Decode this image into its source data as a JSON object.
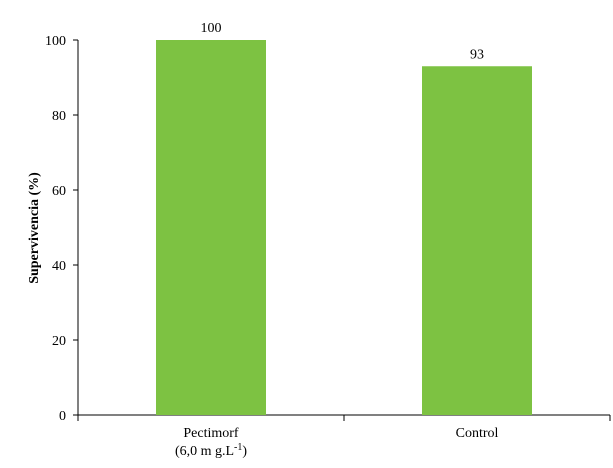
{
  "chart_data": {
    "type": "bar",
    "categories": [
      "Pectimorf",
      "Control"
    ],
    "category_sublabels": [
      "(6,0 m g.L",
      ""
    ],
    "category_sublabel_superscripts": [
      "-1",
      ""
    ],
    "category_sublabel_suffixes": [
      ")",
      ""
    ],
    "values": [
      100,
      93
    ],
    "data_labels": [
      "100",
      "93"
    ],
    "ylabel": "Supervivencia  (%)",
    "xlabel": "",
    "title": "",
    "ylim": [
      0,
      100
    ],
    "yticks": [
      0,
      20,
      40,
      60,
      80,
      100
    ],
    "ytick_labels": [
      "0",
      "20",
      "40",
      "60",
      "80",
      "100"
    ],
    "grid": false,
    "bar_color": "#7dc242"
  }
}
